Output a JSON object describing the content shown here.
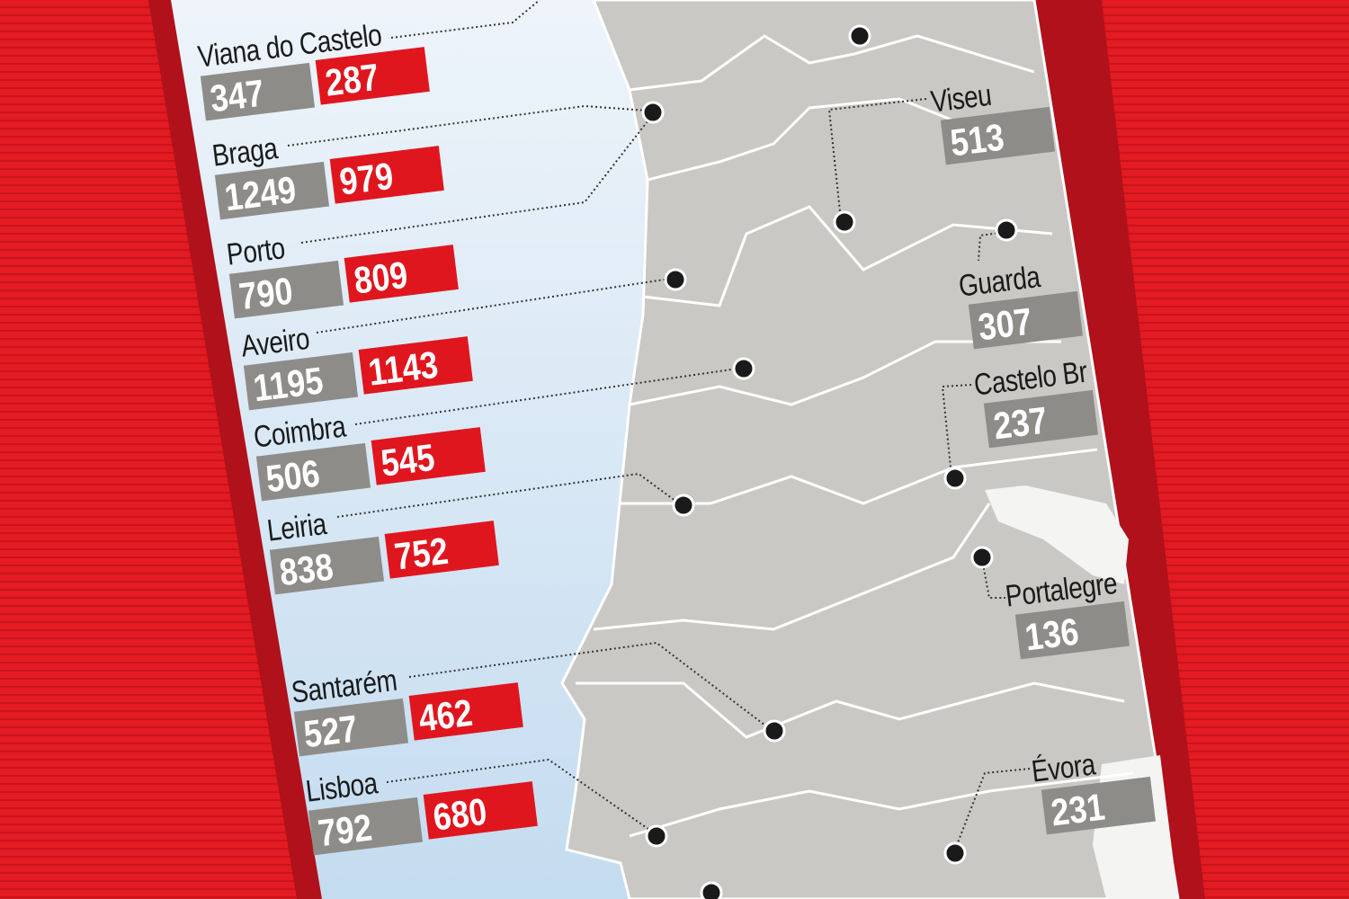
{
  "colors": {
    "background_red": "#e31b23",
    "panel_border": "#b0111a",
    "sea": "#d6e8f5",
    "land": "#c9c8c4",
    "box_grey": "#8e8c88",
    "box_red": "#e0161f"
  },
  "left_districts": [
    {
      "name": "Viana do Castelo",
      "grey_value": "347",
      "red_value": "287"
    },
    {
      "name": "Braga",
      "grey_value": "1249",
      "red_value": "979"
    },
    {
      "name": "Porto",
      "grey_value": "790",
      "red_value": "809"
    },
    {
      "name": "Aveiro",
      "grey_value": "1195",
      "red_value": "1143"
    },
    {
      "name": "Coimbra",
      "grey_value": "506",
      "red_value": "545"
    },
    {
      "name": "Leiria",
      "grey_value": "838",
      "red_value": "752"
    },
    {
      "name": "Santarém",
      "grey_value": "527",
      "red_value": "462"
    },
    {
      "name": "Lisboa",
      "grey_value": "792",
      "red_value": "680"
    }
  ],
  "right_districts": [
    {
      "name": "Viseu",
      "grey_value": "513"
    },
    {
      "name": "Guarda",
      "grey_value": "307"
    },
    {
      "name": "Castelo Br",
      "grey_value": "237"
    },
    {
      "name": "Portalegre",
      "grey_value": "136"
    },
    {
      "name": "Évora",
      "grey_value": "231"
    }
  ],
  "marker_icon": "district-capital-dot"
}
